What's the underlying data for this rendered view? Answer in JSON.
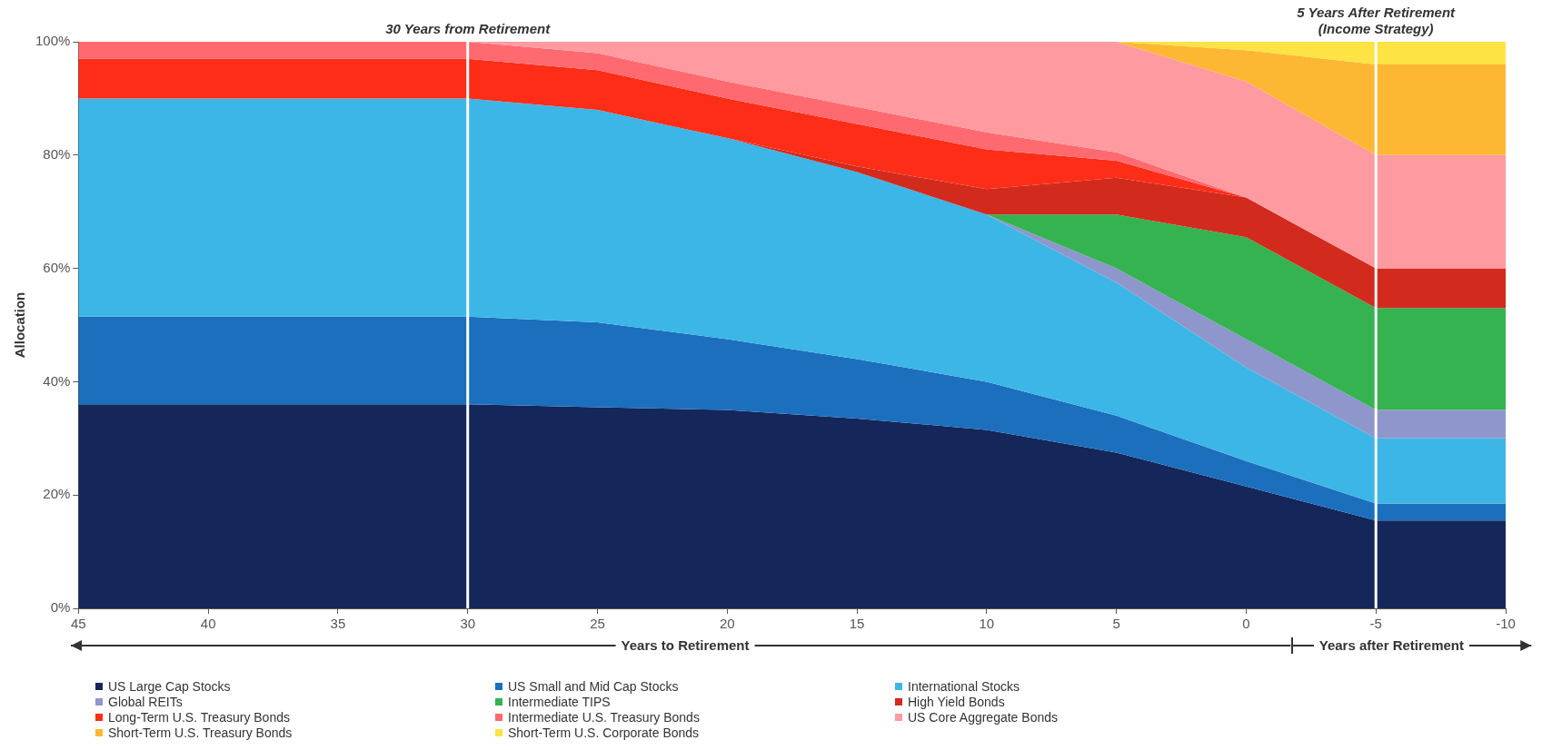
{
  "chart_data": {
    "type": "area",
    "stacked": true,
    "ylabel": "Allocation",
    "xlabel": "Years to Retirement",
    "x": [
      45,
      40,
      35,
      30,
      25,
      20,
      15,
      10,
      5,
      0,
      -5,
      -10
    ],
    "xlim": [
      45,
      -10
    ],
    "xticks": [
      45,
      40,
      35,
      30,
      25,
      20,
      15,
      10,
      5,
      0,
      -5,
      -10
    ],
    "ylim": [
      0,
      100
    ],
    "yticks": [
      {
        "value": 0,
        "label": "0%"
      },
      {
        "value": 20,
        "label": "20%"
      },
      {
        "value": 40,
        "label": "40%"
      },
      {
        "value": 60,
        "label": "60%"
      },
      {
        "value": 80,
        "label": "80%"
      },
      {
        "value": 100,
        "label": "100%"
      }
    ],
    "legend": "bottom",
    "series": [
      {
        "name": "US Large Cap Stocks",
        "color": "#15265a",
        "values": [
          36,
          36,
          36,
          36,
          35.5,
          35,
          33.5,
          31.5,
          27.5,
          21.5,
          15.5,
          15.5
        ]
      },
      {
        "name": "US Small and Mid Cap Stocks",
        "color": "#1b6fbd",
        "values": [
          15.5,
          15.5,
          15.5,
          15.5,
          15,
          12.5,
          10.5,
          8.5,
          6.5,
          4.5,
          3,
          3
        ]
      },
      {
        "name": "International Stocks",
        "color": "#3cb6e6",
        "values": [
          38.5,
          38.5,
          38.5,
          38.5,
          37.5,
          35.5,
          33,
          29.5,
          23.5,
          16.5,
          11.5,
          11.5
        ]
      },
      {
        "name": "Global REITs",
        "color": "#8e96cc",
        "values": [
          null,
          null,
          null,
          null,
          null,
          null,
          null,
          0,
          2.5,
          5,
          5,
          5
        ]
      },
      {
        "name": "Intermediate TIPS",
        "color": "#34b350",
        "values": [
          null,
          null,
          null,
          null,
          null,
          null,
          null,
          0,
          9.5,
          18,
          18,
          18
        ]
      },
      {
        "name": "High Yield Bonds",
        "color": "#d22b1d",
        "values": [
          null,
          null,
          null,
          null,
          null,
          0,
          1,
          4.5,
          6.5,
          7,
          7,
          7
        ]
      },
      {
        "name": "Long-Term U.S. Treasury Bonds",
        "color": "#fd2d18",
        "values": [
          7,
          7,
          7,
          7,
          7,
          7,
          7.5,
          7,
          3,
          0,
          null,
          null
        ]
      },
      {
        "name": "Intermediate U.S. Treasury Bonds",
        "color": "#fe6a6f",
        "values": [
          3,
          3,
          3,
          3,
          3,
          3,
          3,
          3,
          1.5,
          0,
          null,
          null
        ]
      },
      {
        "name": "US Core Aggregate Bonds",
        "color": "#fe9aa0",
        "values": [
          null,
          null,
          null,
          0,
          2,
          7,
          11.5,
          16,
          19.5,
          20.5,
          20,
          20
        ]
      },
      {
        "name": "Short-Term U.S. Treasury Bonds",
        "color": "#fdb733",
        "values": [
          null,
          null,
          null,
          null,
          null,
          null,
          null,
          null,
          0,
          5.5,
          16,
          16
        ]
      },
      {
        "name": "Short-Term U.S. Corporate Bonds",
        "color": "#fde344",
        "values": [
          null,
          null,
          null,
          null,
          null,
          null,
          null,
          null,
          0,
          1.5,
          4,
          4
        ]
      }
    ],
    "ref_lines": [
      {
        "axis": "x",
        "value": 30,
        "label": "30 Years from Retirement",
        "color": "#ffffff"
      },
      {
        "axis": "x",
        "value": -5,
        "label": "5 Years After Retirement\n(Income Strategy)",
        "color": "#ffffff"
      }
    ],
    "annotations": [
      "Years after Retirement"
    ]
  }
}
